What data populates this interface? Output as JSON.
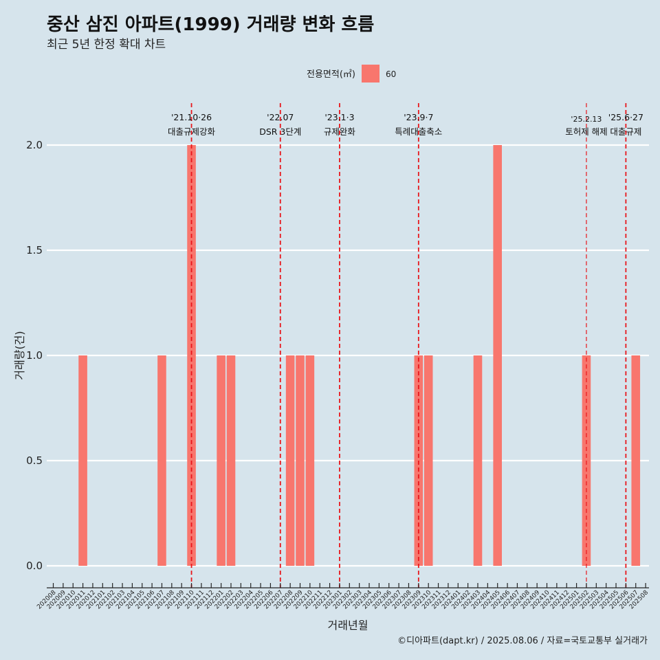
{
  "chart_data": {
    "type": "bar",
    "title": "중산 삼진 아파트(1999) 거래량 변화 흐름",
    "subtitle": "최근 5년 한정 확대 차트",
    "xlabel": "거래년월",
    "ylabel": "거래량(건)",
    "ylim": [
      0,
      2.0
    ],
    "yticks": [
      "0.0",
      "0.5",
      "1.0",
      "1.5",
      "2.0"
    ],
    "grid": true,
    "legend": {
      "title": "전용면적(㎡)",
      "position": "top",
      "entries": [
        {
          "name": "60",
          "color": "#f8766d"
        }
      ]
    },
    "categories": [
      "202008",
      "202009",
      "202010",
      "202011",
      "202012",
      "202101",
      "202102",
      "202103",
      "202104",
      "202105",
      "202106",
      "202107",
      "202108",
      "202109",
      "202110",
      "202111",
      "202112",
      "202201",
      "202202",
      "202203",
      "202204",
      "202205",
      "202206",
      "202207",
      "202208",
      "202209",
      "202210",
      "202211",
      "202212",
      "202301",
      "202302",
      "202303",
      "202304",
      "202305",
      "202306",
      "202307",
      "202308",
      "202309",
      "202310",
      "202311",
      "202312",
      "202401",
      "202402",
      "202403",
      "202404",
      "202405",
      "202406",
      "202407",
      "202408",
      "202409",
      "202410",
      "202411",
      "202412",
      "202501",
      "202502",
      "202503",
      "202504",
      "202505",
      "202506",
      "202507",
      "202508"
    ],
    "series": [
      {
        "name": "60",
        "color": "#f8766d",
        "values": [
          0,
          0,
          0,
          1,
          0,
          0,
          0,
          0,
          0,
          0,
          0,
          1,
          0,
          0,
          2,
          0,
          0,
          1,
          1,
          0,
          0,
          0,
          0,
          0,
          1,
          1,
          1,
          0,
          0,
          0,
          0,
          0,
          0,
          0,
          0,
          0,
          0,
          1,
          1,
          0,
          0,
          0,
          0,
          1,
          0,
          2,
          0,
          0,
          0,
          0,
          0,
          0,
          0,
          0,
          1,
          0,
          0,
          0,
          0,
          1,
          0
        ]
      }
    ],
    "annotations": [
      {
        "at": "202110",
        "date": "'21.10·26",
        "label": "대출규제강화",
        "style": "dashed",
        "small": false
      },
      {
        "at": "202207",
        "date": "'22.07",
        "label": "DSR 3단계",
        "style": "dashed",
        "small": false
      },
      {
        "at": "202301",
        "date": "'23.1·3",
        "label": "규제완화",
        "style": "dashed",
        "small": false
      },
      {
        "at": "202309",
        "date": "'23.9·7",
        "label": "특례대출축소",
        "style": "dashed",
        "small": false
      },
      {
        "at": "202502",
        "date": "'25.2.13",
        "label": "토허제 해제",
        "style": "thin-dashed",
        "small": true
      },
      {
        "at": "202506",
        "date": "'25.6·27",
        "label": "대출규제",
        "style": "dashed",
        "small": false
      }
    ],
    "caption": "©디아파트(dapt.kr) / 2025.08.06 / 자료=국토교통부 실거래가"
  }
}
